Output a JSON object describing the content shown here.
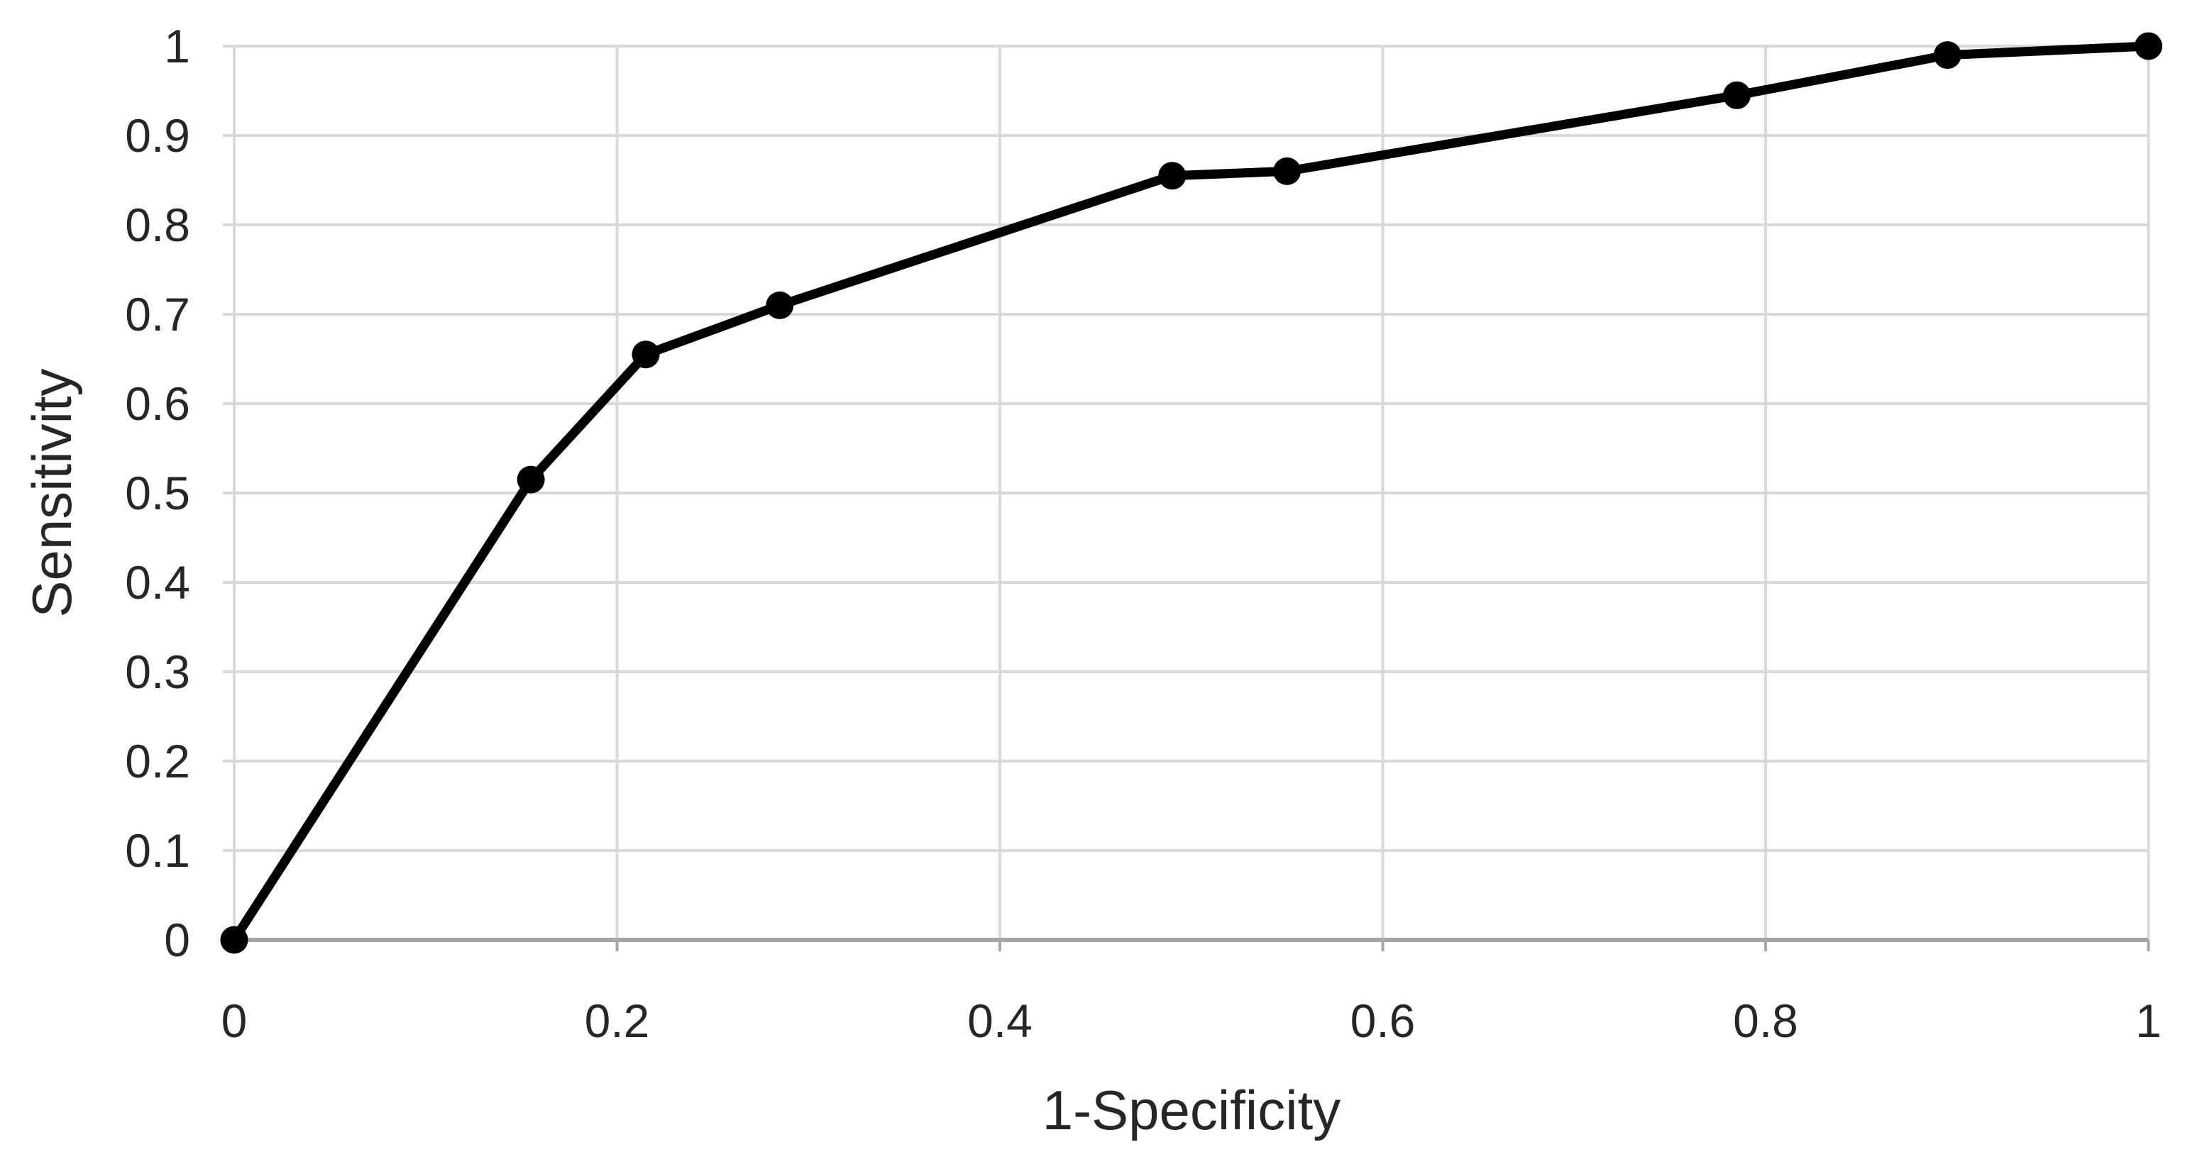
{
  "chart_data": {
    "type": "line",
    "title": "",
    "xlabel": "1-Specificity",
    "ylabel": "Sensitivity",
    "xlim": [
      0,
      1
    ],
    "ylim": [
      0,
      1
    ],
    "grid": true,
    "legend_position": "none",
    "x_ticks": {
      "values": [
        0,
        0.2,
        0.4,
        0.6,
        0.8,
        1
      ],
      "labels": [
        "0",
        "0.2",
        "0.4",
        "0.6",
        "0.8",
        "1"
      ]
    },
    "y_ticks": {
      "values": [
        0,
        0.1,
        0.2,
        0.3,
        0.4,
        0.5,
        0.6,
        0.7,
        0.8,
        0.9,
        1
      ],
      "labels": [
        "0",
        "0.1",
        "0.2",
        "0.3",
        "0.4",
        "0.5",
        "0.6",
        "0.7",
        "0.8",
        "0.9",
        "1"
      ]
    },
    "series": [
      {
        "id": "roc-curve",
        "marker": "circle",
        "x": [
          0,
          0.155,
          0.215,
          0.285,
          0.49,
          0.55,
          0.785,
          0.895,
          1
        ],
        "y": [
          0,
          0.515,
          0.655,
          0.71,
          0.855,
          0.86,
          0.945,
          0.99,
          1
        ]
      }
    ],
    "colors": {
      "series_line": "#000000",
      "marker_fill": "#000000",
      "gridline": "#d9d9d9",
      "axis_line": "#a6a6a6",
      "tick_label": "#262626",
      "axis_title": "#262626",
      "background": "#ffffff"
    }
  }
}
